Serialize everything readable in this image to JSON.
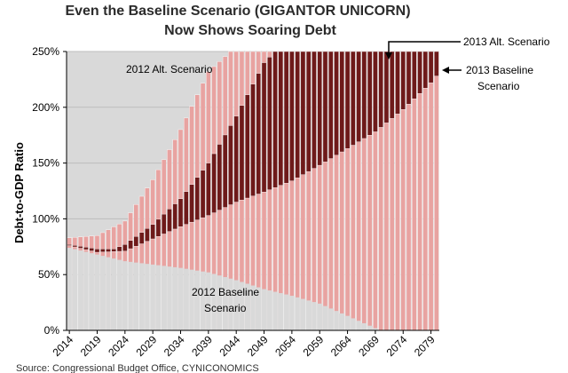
{
  "chart_data": {
    "type": "bar",
    "title_line1": "Even the Baseline Scenario (GIGANTOR UNICORN)",
    "title_line2": "Now Shows Soaring Debt",
    "ylabel": "Debt-to-GDP Ratio",
    "ylim": [
      0,
      250
    ],
    "yticks": [
      "0%",
      "50%",
      "100%",
      "150%",
      "200%",
      "250%"
    ],
    "x_start": 2014,
    "x_end": 2080,
    "xtick_labels": [
      "2014",
      "2019",
      "2024",
      "2029",
      "2034",
      "2039",
      "2044",
      "2049",
      "2054",
      "2059",
      "2064",
      "2069",
      "2074",
      "2079"
    ],
    "grid": true,
    "colors": {
      "background": "#d9d9d9",
      "light_bars": "#e8a3a1",
      "dark_bars": "#6e1a1a",
      "bar_edge": "#ffffff"
    },
    "series": [
      {
        "name": "2012 Alt. Scenario",
        "style": "light",
        "points": [
          [
            2014,
            83
          ],
          [
            2019,
            85
          ],
          [
            2024,
            98
          ],
          [
            2029,
            135
          ],
          [
            2034,
            180
          ],
          [
            2039,
            232
          ],
          [
            2043,
            250
          ],
          [
            2080,
            250
          ]
        ]
      },
      {
        "name": "2013 Alt. Scenario",
        "style": "dark",
        "points": [
          [
            2014,
            77
          ],
          [
            2019,
            73
          ],
          [
            2022,
            73
          ],
          [
            2024,
            77
          ],
          [
            2029,
            95
          ],
          [
            2034,
            118
          ],
          [
            2039,
            150
          ],
          [
            2044,
            192
          ],
          [
            2049,
            240
          ],
          [
            2051,
            250
          ],
          [
            2080,
            250
          ]
        ]
      },
      {
        "name": "2013 Baseline Scenario",
        "style": "light",
        "points": [
          [
            2014,
            76
          ],
          [
            2019,
            70
          ],
          [
            2024,
            71
          ],
          [
            2029,
            82
          ],
          [
            2034,
            93
          ],
          [
            2039,
            103
          ],
          [
            2044,
            115
          ],
          [
            2049,
            124
          ],
          [
            2054,
            134
          ],
          [
            2059,
            148
          ],
          [
            2064,
            163
          ],
          [
            2069,
            178
          ],
          [
            2074,
            198
          ],
          [
            2079,
            222
          ],
          [
            2080,
            228
          ]
        ]
      },
      {
        "name": "2012 Baseline Scenario",
        "style": "grey",
        "points": [
          [
            2014,
            74
          ],
          [
            2019,
            68
          ],
          [
            2024,
            62
          ],
          [
            2029,
            59
          ],
          [
            2034,
            56
          ],
          [
            2039,
            52
          ],
          [
            2044,
            45
          ],
          [
            2049,
            37
          ],
          [
            2054,
            31
          ],
          [
            2059,
            24
          ],
          [
            2064,
            13
          ],
          [
            2069,
            2
          ],
          [
            2070,
            0
          ],
          [
            2080,
            0
          ]
        ]
      }
    ],
    "annotations": {
      "alt_2012": "2012 Alt. Scenario",
      "alt_2013": "2013 Alt. Scenario",
      "base_2013_l1": "2013 Baseline",
      "base_2013_l2": "Scenario",
      "base_2012_l1": "2012 Baseline",
      "base_2012_l2": "Scenario"
    },
    "source": "Source: Congressional Budget Office, CYNICONOMICS"
  }
}
